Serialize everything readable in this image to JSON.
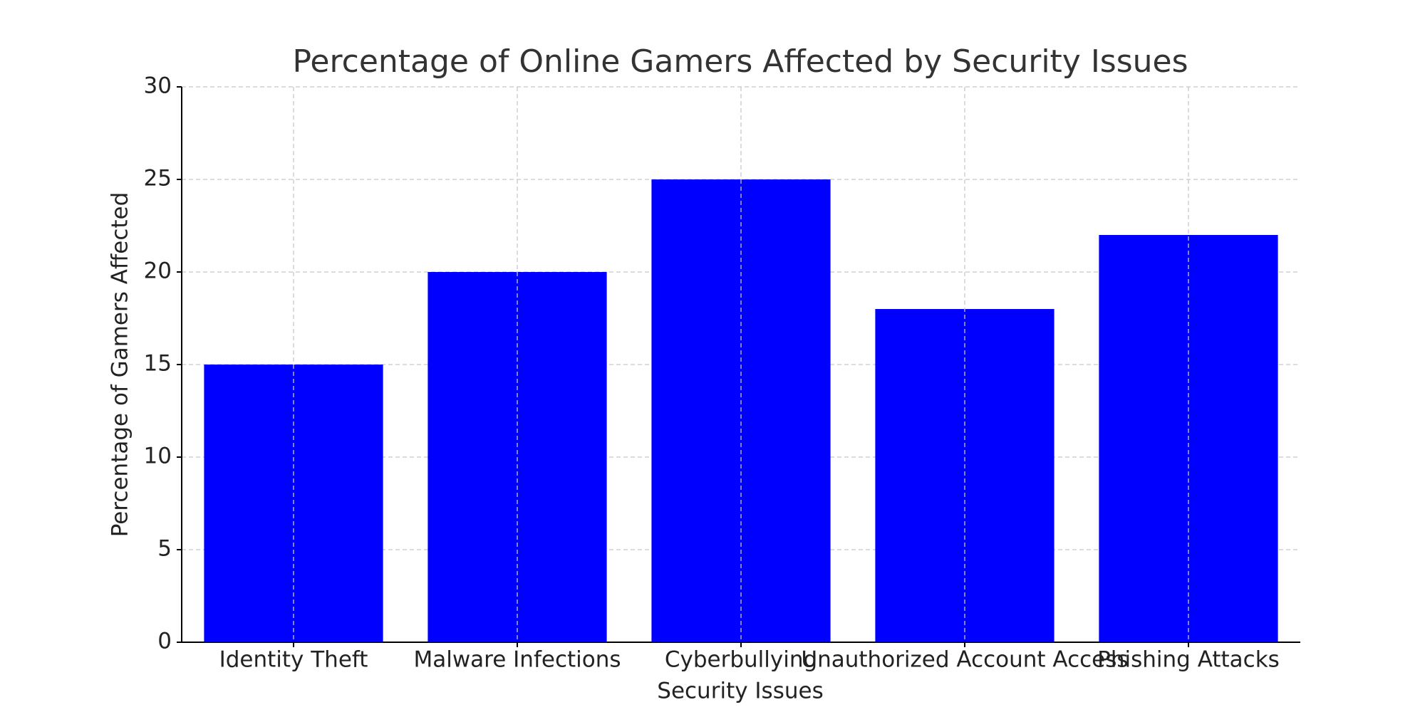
{
  "chart_data": {
    "type": "bar",
    "title": "Percentage of Online Gamers Affected by Security Issues",
    "x_label": "Security Issues",
    "y_label": "Percentage of Gamers Affected",
    "categories": [
      "Identity Theft",
      "Malware Infections",
      "Cyberbullying",
      "Unauthorized Account Access",
      "Phishing Attacks"
    ],
    "values": [
      15,
      20,
      25,
      18,
      22
    ],
    "color": "#0000ff",
    "ylim": [
      0,
      30
    ],
    "yticks": [
      0,
      5,
      10,
      15,
      20,
      25,
      30
    ],
    "grid": true
  }
}
